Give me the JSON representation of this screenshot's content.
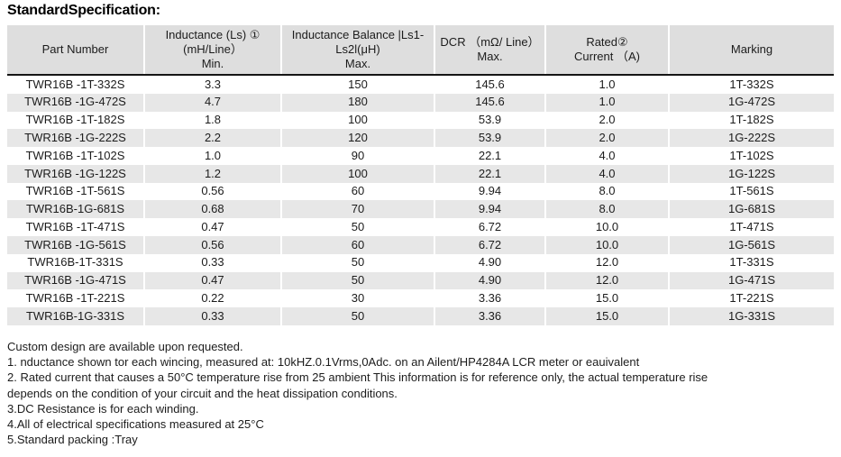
{
  "title": "StandardSpecification:",
  "colors": {
    "header_bg": "#dedede",
    "row_alt_bg": "#e7e7e7",
    "header_rule": "#151515",
    "column_separator": "#ffffff",
    "text": "#1c1c1c"
  },
  "table": {
    "headers": [
      {
        "lines": [
          "Part Number"
        ]
      },
      {
        "lines": [
          "Inductance (Ls) ①",
          "(mH/Line）",
          "Min."
        ]
      },
      {
        "lines": [
          "Inductance Balance |Ls1-",
          "Ls2l(μH)",
          "Max."
        ]
      },
      {
        "lines": [
          "DCR （mΩ/ Line）",
          "Max."
        ]
      },
      {
        "lines": [
          "Rated②",
          "Current （A)"
        ]
      },
      {
        "lines": [
          "Marking"
        ]
      }
    ],
    "rows": [
      [
        "TWR16B -1T-332S",
        "3.3",
        "150",
        "145.6",
        "1.0",
        "1T-332S"
      ],
      [
        "TWR16B -1G-472S",
        "4.7",
        "180",
        "145.6",
        "1.0",
        "1G-472S"
      ],
      [
        "TWR16B -1T-182S",
        "1.8",
        "100",
        "53.9",
        "2.0",
        "1T-182S"
      ],
      [
        "TWR16B -1G-222S",
        "2.2",
        "120",
        "53.9",
        "2.0",
        "1G-222S"
      ],
      [
        "TWR16B -1T-102S",
        "1.0",
        "90",
        "22.1",
        "4.0",
        "1T-102S"
      ],
      [
        "TWR16B -1G-122S",
        "1.2",
        "100",
        "22.1",
        "4.0",
        "1G-122S"
      ],
      [
        "TWR16B -1T-561S",
        "0.56",
        "60",
        "9.94",
        "8.0",
        "1T-561S"
      ],
      [
        "TWR16B-1G-681S",
        "0.68",
        "70",
        "9.94",
        "8.0",
        "1G-681S"
      ],
      [
        "TWR16B -1T-471S",
        "0.47",
        "50",
        "6.72",
        "10.0",
        "1T-471S"
      ],
      [
        "TWR16B -1G-561S",
        "0.56",
        "60",
        "6.72",
        "10.0",
        "1G-561S"
      ],
      [
        "TWR16B-1T-331S",
        "0.33",
        "50",
        "4.90",
        "12.0",
        "1T-331S"
      ],
      [
        "TWR16B -1G-471S",
        "0.47",
        "50",
        "4.90",
        "12.0",
        "1G-471S"
      ],
      [
        "TWR16B -1T-221S",
        "0.22",
        "30",
        "3.36",
        "15.0",
        "1T-221S"
      ],
      [
        "TWR16B-1G-331S",
        "0.33",
        "50",
        "3.36",
        "15.0",
        "1G-331S"
      ]
    ]
  },
  "notes": [
    "Custom design are available upon requested.",
    "1. nductance shown tor each wincing, measured at: 10kHZ.0.1Vrms,0Adc. on an Ailent/HP4284A LCR meter or eauivalent",
    "2. Rated current that causes a 50°C temperature rise from 25 ambient This information is for reference only, the actual temperature rise",
    "depends on the condition of your circuit and the heat dissipation conditions.",
    "3.DC Resistance is for each winding.",
    "4.All of electrical specifications measured at 25°C",
    "5.Standard packing :Tray"
  ]
}
